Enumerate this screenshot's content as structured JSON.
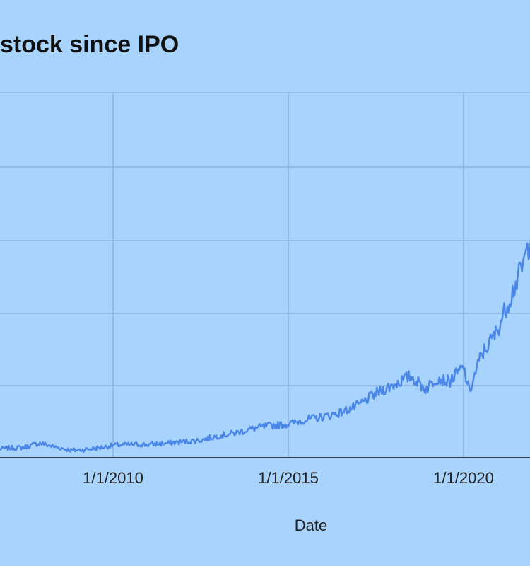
{
  "chart_data": {
    "type": "line",
    "title": "stock since IPO",
    "xlabel": "Date",
    "ylabel": "",
    "xticks": [
      "1/1/2010",
      "1/1/2015",
      "1/1/2020"
    ],
    "grid": true,
    "legend": "none",
    "colors": {
      "background": "#a7d3fd",
      "grid": "#8aaed2",
      "axis": "#2f4050",
      "line": "#4a86e8"
    },
    "series": [
      {
        "x": [
          "2006-10-01",
          "2007-01-01",
          "2007-06-01",
          "2007-12-01",
          "2008-06-01",
          "2008-11-01",
          "2009-03-01",
          "2009-09-01",
          "2010-01-01",
          "2010-07-01",
          "2011-01-01",
          "2011-08-01",
          "2012-01-01",
          "2012-07-01",
          "2013-01-01",
          "2013-07-01",
          "2014-01-01",
          "2014-07-01",
          "2015-01-01",
          "2015-07-01",
          "2016-01-01",
          "2016-07-01",
          "2017-01-01",
          "2017-07-01",
          "2018-01-01",
          "2018-07-01",
          "2018-12-01",
          "2019-04-01",
          "2019-08-01",
          "2020-01-01",
          "2020-03-01",
          "2020-07-01",
          "2020-12-01",
          "2021-04-01",
          "2021-09-01",
          "2021-12-01"
        ],
        "values": [
          6,
          6.5,
          7,
          10,
          7,
          5,
          5.5,
          7,
          8.5,
          9,
          9,
          10,
          11,
          12,
          15,
          17,
          20,
          22,
          23,
          26,
          28,
          31,
          36,
          44,
          50,
          56,
          47,
          55,
          52,
          62,
          45,
          70,
          85,
          105,
          130,
          150
        ]
      }
    ]
  }
}
